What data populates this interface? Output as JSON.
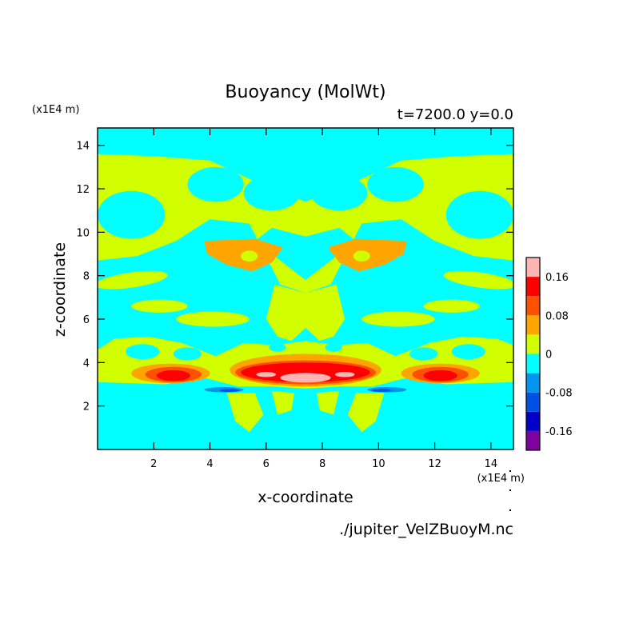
{
  "chart_data": {
    "type": "heatmap",
    "title": "Buoyancy (MolWt)",
    "subtitle": "t=7200.0 y=0.0",
    "xlabel": "x-coordinate",
    "ylabel": "z-coordinate",
    "x_unit": "(x1E4 m)",
    "y_unit": "(x1E4 m)",
    "footer": "./jupiter_VelZBuoyM.nc",
    "xlim": [
      0,
      14.8
    ],
    "ylim": [
      0,
      14.8
    ],
    "x_ticks": [
      2,
      4,
      6,
      8,
      10,
      12,
      14
    ],
    "y_ticks": [
      2,
      4,
      6,
      8,
      10,
      12,
      14
    ],
    "x_tick_labels": [
      "2",
      "4",
      "6",
      "8",
      "10",
      "12",
      "14"
    ],
    "y_tick_labels": [
      "2",
      "4",
      "6",
      "8",
      "10",
      "12",
      "14"
    ],
    "colorbar": {
      "levels": [
        -0.2,
        -0.16,
        -0.12,
        -0.08,
        -0.04,
        0,
        0.04,
        0.08,
        0.12,
        0.16,
        0.2
      ],
      "colors": [
        "#8000a0",
        "#0000c8",
        "#0050e6",
        "#0096f0",
        "#00ffff",
        "#d2ff00",
        "#ffa500",
        "#ff5000",
        "#ff0000",
        "#ffb4b4"
      ],
      "tick_values": [
        0.16,
        0.08,
        0,
        -0.08,
        -0.16
      ],
      "tick_labels": [
        "0.16",
        "0.08",
        "0",
        "-0.08",
        "-0.16"
      ]
    },
    "grid": false
  }
}
